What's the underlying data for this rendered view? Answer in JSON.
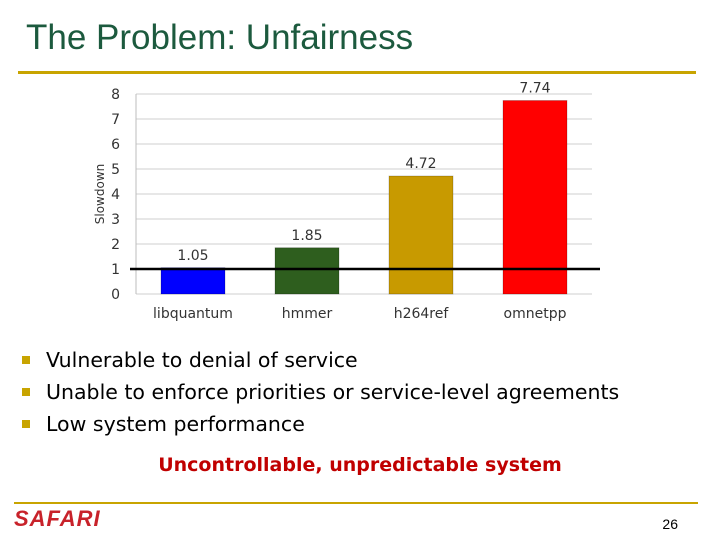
{
  "slide": {
    "title": "The Problem: Unfairness",
    "bullets": [
      "Vulnerable to denial of service",
      "Unable to enforce priorities or service-level agreements",
      "Low system performance"
    ],
    "callout": "Uncontrollable, unpredictable system",
    "logo_text": "SAFARI",
    "page_number": "26",
    "accent_color": "#c8a400",
    "title_color": "#1c5a3e",
    "callout_color": "#c00000"
  },
  "chart_data": {
    "type": "bar",
    "title": "",
    "xlabel": "",
    "ylabel": "Slowdown",
    "ylim": [
      0,
      8
    ],
    "yticks": [
      0,
      1,
      2,
      3,
      4,
      5,
      6,
      7,
      8
    ],
    "grid": true,
    "categories": [
      "libquantum",
      "hmmer",
      "h264ref",
      "omnetpp"
    ],
    "values": [
      1.05,
      1.85,
      4.72,
      7.74
    ],
    "data_labels": [
      "1.05",
      "1.85",
      "4.72",
      "7.74"
    ],
    "bar_colors": [
      "#0000ff",
      "#2e5e1e",
      "#c89a00",
      "#ff0000"
    ],
    "reference_line": 1
  }
}
